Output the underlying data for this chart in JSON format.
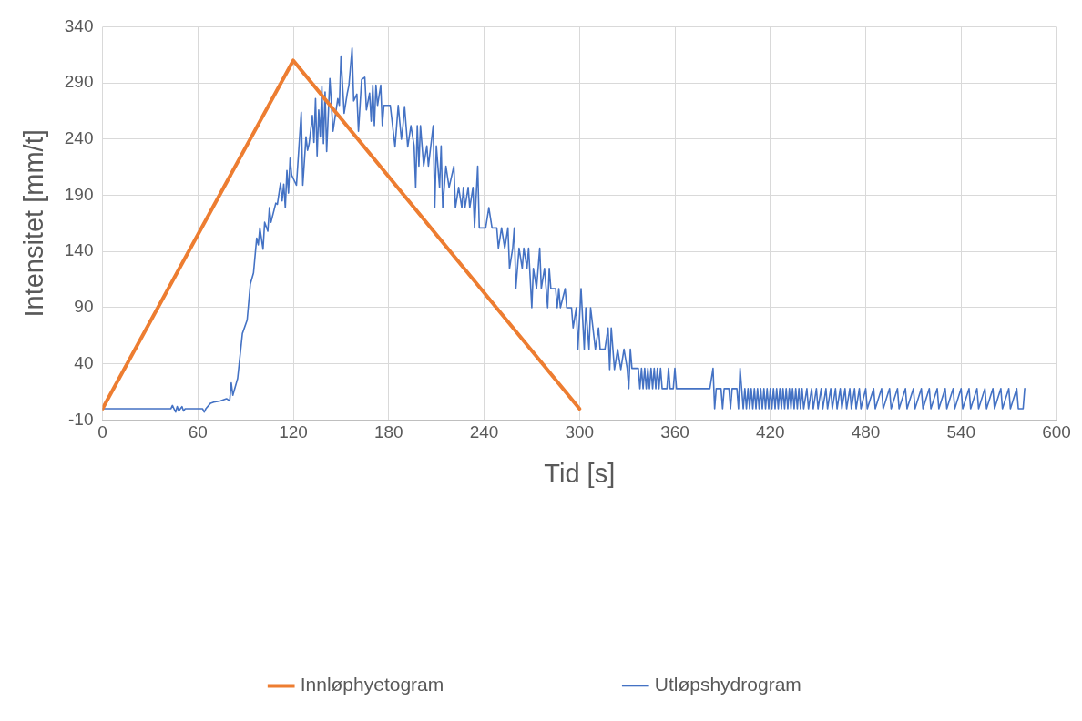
{
  "chart_data": {
    "type": "line",
    "xlabel": "Tid [s]",
    "ylabel": "Intensitet [mm/t]",
    "xlim": [
      0,
      600
    ],
    "xticks": [
      0,
      60,
      120,
      180,
      240,
      300,
      360,
      420,
      480,
      540,
      600
    ],
    "ylim": [
      -10,
      340
    ],
    "yticks": [
      -10,
      40,
      90,
      140,
      190,
      240,
      290,
      340
    ],
    "grid": true,
    "legend": "bottom",
    "marker": "none",
    "line_style": "solid",
    "series": [
      {
        "name": "Innløphyetogram",
        "color": "#ed7d31",
        "x": [
          0,
          120,
          300
        ],
        "values": [
          0,
          310,
          0
        ]
      },
      {
        "name": "Utløpshydrogram",
        "color": "#4472c4",
        "x": [
          0,
          43,
          44,
          46,
          47,
          48,
          50,
          51,
          52,
          63,
          64,
          65,
          68,
          70,
          74,
          76,
          78,
          80,
          81,
          82,
          85,
          86,
          88,
          91,
          93,
          95,
          97,
          98,
          99,
          101,
          102,
          104,
          105,
          106,
          109,
          110,
          112,
          113,
          114,
          115,
          116,
          117,
          118,
          119,
          121,
          122,
          125,
          126,
          128,
          129,
          130,
          132,
          133,
          134,
          135,
          136,
          137,
          138,
          139,
          140,
          141,
          143,
          145,
          148,
          149,
          150,
          152,
          154,
          155,
          157,
          158,
          160,
          161,
          163,
          165,
          166,
          168,
          169,
          170,
          171,
          172,
          173,
          175,
          176,
          177,
          181,
          184,
          186,
          188,
          189,
          190,
          192,
          194,
          196,
          197,
          198,
          199,
          200,
          202,
          204,
          205,
          208,
          209,
          210,
          212,
          213,
          214,
          216,
          218,
          221,
          222,
          224,
          226,
          227,
          228,
          230,
          231,
          233,
          234,
          236,
          237,
          241,
          243,
          245,
          248,
          249,
          251,
          253,
          255,
          256,
          258,
          259,
          260,
          262,
          264,
          265,
          267,
          268,
          270,
          271,
          273,
          275,
          276,
          278,
          280,
          281,
          282,
          285,
          286,
          287,
          288,
          291,
          292,
          295,
          296,
          298,
          299,
          301,
          303,
          304,
          306,
          307,
          310,
          312,
          313,
          316,
          318,
          319,
          320,
          322,
          324,
          326,
          328,
          330,
          331,
          332,
          333,
          337,
          338,
          339,
          340,
          341,
          342,
          343,
          344,
          345,
          346,
          347,
          348,
          349,
          350,
          351,
          352,
          355,
          356,
          357,
          359,
          360,
          361,
          382,
          384,
          385,
          386,
          389,
          390,
          391,
          394,
          395,
          396,
          399,
          400,
          401,
          402,
          403,
          404,
          405,
          406,
          407,
          408,
          409,
          410,
          411,
          412,
          413,
          414,
          415,
          416,
          417,
          418,
          419,
          420,
          421,
          422,
          423,
          424,
          425,
          426,
          427,
          428,
          429,
          430,
          431,
          432,
          433,
          434,
          435,
          436,
          437,
          438,
          439,
          440,
          441,
          443,
          444,
          446,
          447,
          449,
          450,
          452,
          453,
          455,
          456,
          458,
          459,
          461,
          462,
          464,
          465,
          467,
          468,
          470,
          471,
          473,
          474,
          476,
          477,
          480,
          481,
          485,
          486,
          490,
          491,
          495,
          496,
          500,
          501,
          505,
          506,
          510,
          511,
          515,
          516,
          520,
          521,
          525,
          526,
          530,
          531,
          535,
          536,
          540,
          541,
          545,
          546,
          550,
          551,
          555,
          556,
          560,
          561,
          565,
          566,
          570,
          571,
          575,
          576,
          579,
          580
        ],
        "values": [
          0,
          0,
          3,
          -3,
          2,
          -2,
          2,
          -2,
          0,
          0,
          -3,
          0,
          5,
          6,
          7,
          8,
          9,
          7,
          23,
          12,
          27,
          40,
          67,
          79,
          111,
          121,
          152,
          146,
          161,
          142,
          166,
          158,
          179,
          166,
          183,
          182,
          201,
          185,
          200,
          179,
          212,
          192,
          223,
          208,
          202,
          199,
          264,
          199,
          242,
          230,
          236,
          261,
          237,
          276,
          225,
          266,
          242,
          287,
          236,
          282,
          229,
          294,
          247,
          276,
          270,
          314,
          263,
          281,
          288,
          321,
          274,
          280,
          247,
          293,
          295,
          266,
          281,
          256,
          288,
          252,
          288,
          270,
          288,
          252,
          270,
          270,
          233,
          270,
          240,
          252,
          269,
          233,
          252,
          234,
          197,
          252,
          216,
          252,
          216,
          234,
          216,
          252,
          179,
          234,
          197,
          234,
          179,
          216,
          197,
          216,
          179,
          197,
          179,
          197,
          179,
          197,
          179,
          197,
          161,
          216,
          161,
          161,
          179,
          161,
          161,
          143,
          161,
          143,
          161,
          125,
          143,
          161,
          107,
          143,
          125,
          143,
          125,
          143,
          90,
          125,
          107,
          143,
          107,
          125,
          90,
          125,
          107,
          107,
          90,
          107,
          90,
          107,
          90,
          90,
          72,
          90,
          53,
          107,
          53,
          90,
          53,
          90,
          53,
          72,
          53,
          53,
          72,
          35,
          72,
          35,
          53,
          35,
          53,
          36,
          18,
          53,
          36,
          36,
          18,
          36,
          18,
          36,
          18,
          36,
          18,
          36,
          18,
          36,
          18,
          36,
          18,
          36,
          18,
          18,
          36,
          18,
          18,
          36,
          18,
          18,
          36,
          0,
          18,
          18,
          0,
          18,
          18,
          0,
          18,
          18,
          0,
          36,
          18,
          0,
          18,
          0,
          18,
          0,
          18,
          0,
          18,
          0,
          18,
          0,
          18,
          0,
          18,
          0,
          18,
          0,
          18,
          0,
          18,
          0,
          18,
          0,
          18,
          0,
          18,
          0,
          18,
          0,
          18,
          0,
          18,
          0,
          18,
          0,
          18,
          0,
          18,
          0,
          18,
          0,
          18,
          0,
          18,
          0,
          18,
          0,
          18,
          0,
          18,
          0,
          18,
          0,
          18,
          0,
          18,
          0,
          18,
          0,
          18,
          0,
          18,
          0,
          18,
          0,
          18,
          0,
          18,
          0,
          18,
          0,
          18,
          0,
          18,
          0,
          18,
          0,
          18,
          0,
          18,
          0,
          18,
          0,
          18,
          0,
          18,
          0,
          18,
          0,
          18,
          0,
          18,
          0,
          18,
          0,
          18,
          0,
          18,
          0,
          18,
          0,
          18,
          0,
          0,
          18
        ]
      }
    ]
  }
}
